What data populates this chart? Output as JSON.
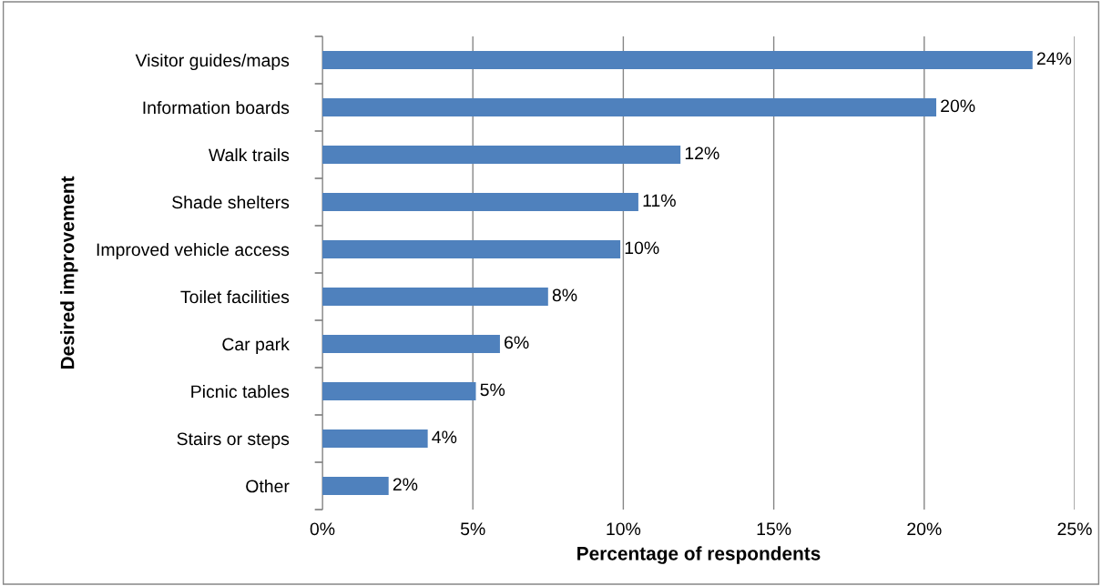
{
  "chart_data": {
    "type": "bar",
    "orientation": "horizontal",
    "xlabel": "Percentage of respondents",
    "ylabel": "Desired improvement",
    "categories": [
      "Visitor guides/maps",
      "Information boards",
      "Walk trails",
      "Shade shelters",
      "Improved vehicle access",
      "Toilet facilities",
      "Car park",
      "Picnic tables",
      "Stairs or steps",
      "Other"
    ],
    "values": [
      23.6,
      20.4,
      11.9,
      10.5,
      9.9,
      7.5,
      5.9,
      5.1,
      3.5,
      2.2
    ],
    "value_labels": [
      "24%",
      "20%",
      "12%",
      "11%",
      "10%",
      "8%",
      "6%",
      "5%",
      "4%",
      "2%"
    ],
    "color": "#4f81bd",
    "xlim": [
      0,
      25
    ],
    "xticks": [
      {
        "value": 0,
        "label": "0%"
      },
      {
        "value": 5,
        "label": "5%"
      },
      {
        "value": 10,
        "label": "10%"
      },
      {
        "value": 15,
        "label": "15%"
      },
      {
        "value": 20,
        "label": "20%"
      },
      {
        "value": 25,
        "label": "25%"
      }
    ],
    "grid": "x",
    "legend": false
  }
}
